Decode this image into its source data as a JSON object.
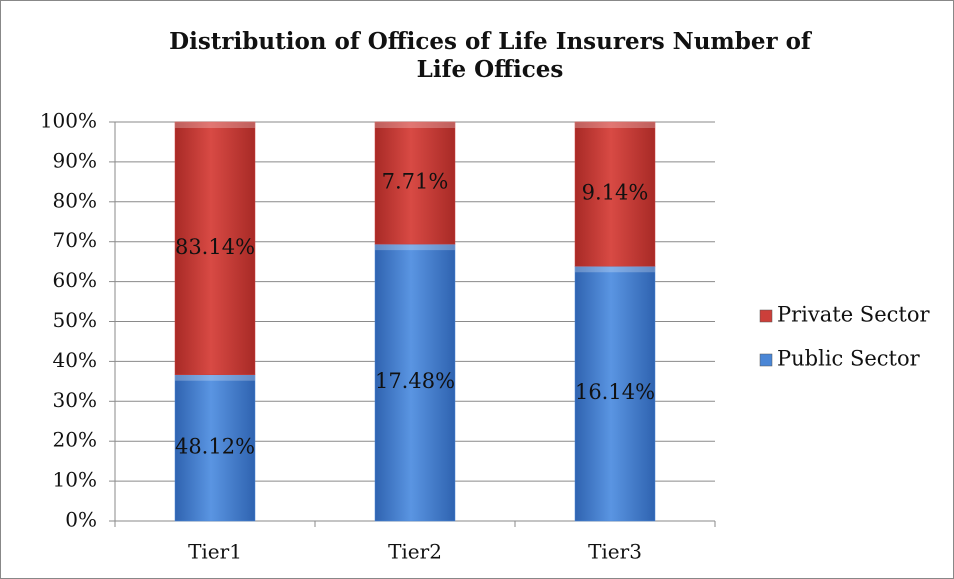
{
  "chart_data": {
    "type": "bar",
    "stacked": "percent",
    "title": "Distribution of Offices of Life Insurers Number of Life Offices",
    "categories": [
      "Tier1",
      "Tier2",
      "Tier3"
    ],
    "series": [
      {
        "name": "Public Sector",
        "color": "#4a86d6",
        "values": [
          48.12,
          17.48,
          16.14
        ],
        "value_labels": [
          "48.12%",
          "17.48%",
          "16.14%"
        ]
      },
      {
        "name": "Private Sector",
        "color": "#cc3f3a",
        "values": [
          83.14,
          7.71,
          9.14
        ],
        "value_labels": [
          "83.14%",
          "7.71%",
          "9.14%"
        ]
      }
    ],
    "ylim": [
      0,
      100
    ],
    "yticks": [
      {
        "value": 0,
        "label": "0%"
      },
      {
        "value": 10,
        "label": "10%"
      },
      {
        "value": 20,
        "label": "20%"
      },
      {
        "value": 30,
        "label": "30%"
      },
      {
        "value": 40,
        "label": "40%"
      },
      {
        "value": 50,
        "label": "50%"
      },
      {
        "value": 60,
        "label": "60%"
      },
      {
        "value": 70,
        "label": "70%"
      },
      {
        "value": 80,
        "label": "80%"
      },
      {
        "value": 90,
        "label": "90%"
      },
      {
        "value": 100,
        "label": "100%"
      }
    ],
    "grid": true,
    "legend": "right"
  }
}
